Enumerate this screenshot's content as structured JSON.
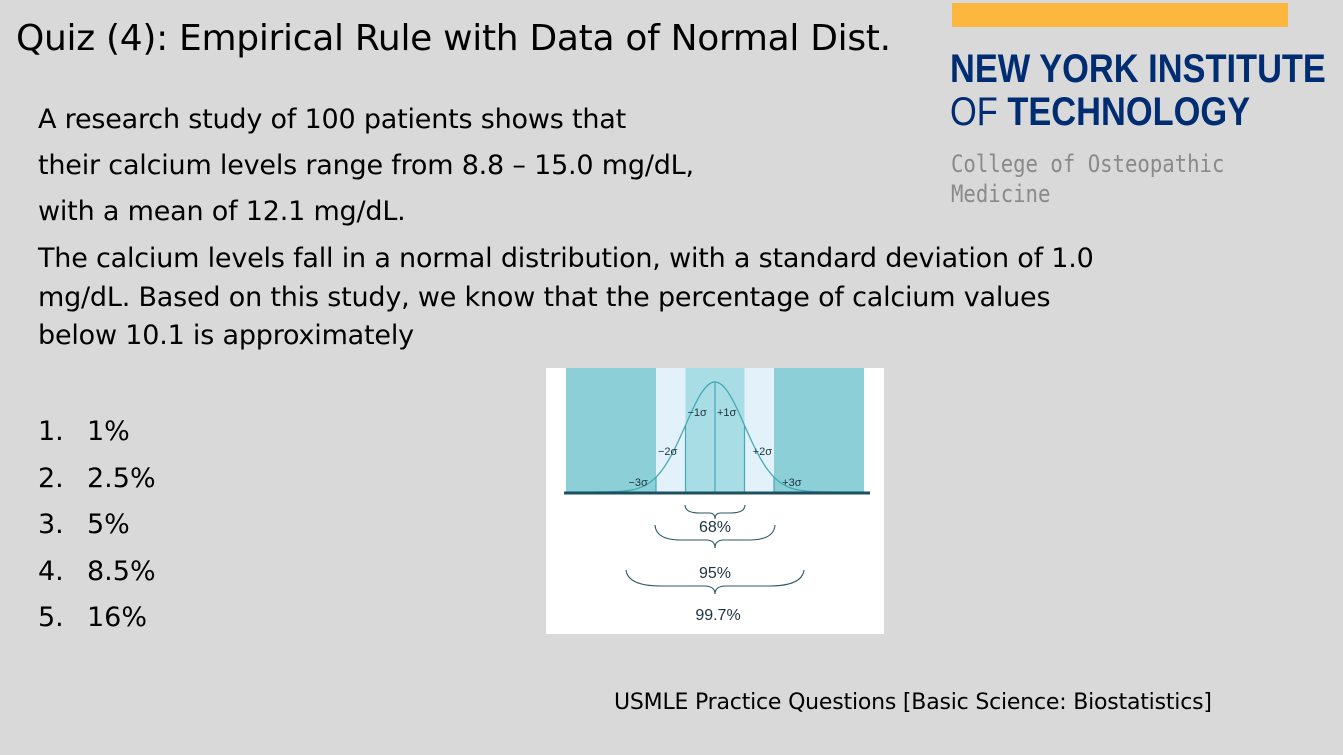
{
  "slide": {
    "title": "Quiz (4): Empirical Rule with Data of Normal Dist.",
    "logo": {
      "line1": "NEW YORK INSTITUTE",
      "line2_of": "OF",
      "line2_rest": "TECHNOLOGY",
      "sub_line1": "College of Osteopathic",
      "sub_line2": "Medicine",
      "colors": {
        "navy": "#002d72",
        "gold": "#fdb73e",
        "gray": "#8a8a8a"
      }
    },
    "question_lines": [
      "A research study of 100 patients shows that",
      "their calcium levels range from 8.8 – 15.0 mg/dL,",
      "with a mean of 12.1 mg/dL.",
      "The calcium levels fall in a normal distribution, with a standard deviation of 1.0",
      "mg/dL. Based on this study, we know that the percentage of calcium values",
      "below 10.1 is approximately"
    ],
    "options": [
      {
        "num": "1.",
        "text": "1%"
      },
      {
        "num": "2.",
        "text": "2.5%"
      },
      {
        "num": "3.",
        "text": "5%"
      },
      {
        "num": "4.",
        "text": "8.5%"
      },
      {
        "num": "5.",
        "text": "16%"
      }
    ],
    "figure": {
      "sigma_labels": {
        "minus3": "−3σ",
        "minus2": "−2σ",
        "minus1": "−1σ",
        "plus1": "+1σ",
        "plus2": "+2σ",
        "plus3": "+3σ"
      },
      "brackets": {
        "p68": "68%",
        "p95": "95%",
        "p997": "99.7%"
      },
      "colors": {
        "outer": "#8ccfd6",
        "middle": "#e3f1fa",
        "inner": "#a8dde5",
        "stroke": "#45a9b4",
        "axis": "#1c4f63"
      }
    },
    "footer": "USMLE Practice Questions [Basic Science: Biostatistics]"
  }
}
